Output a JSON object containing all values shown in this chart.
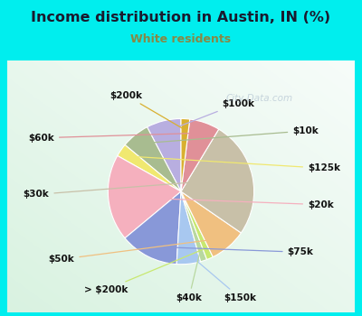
{
  "title": "Income distribution in Austin, IN (%)",
  "subtitle": "White residents",
  "title_color": "#1a1a2e",
  "subtitle_color": "#888844",
  "background_outer": "#00eeee",
  "labels": [
    "$100k",
    "$10k",
    "$125k",
    "$20k",
    "$75k",
    "$150k",
    "$40k",
    "> $200k",
    "$50k",
    "$30k",
    "$60k",
    "$200k"
  ],
  "values": [
    8.0,
    6.5,
    3.0,
    20.0,
    13.5,
    5.5,
    1.5,
    1.5,
    8.5,
    27.0,
    7.0,
    2.0
  ],
  "colors": [
    "#b8aee0",
    "#a8bc90",
    "#f0e870",
    "#f5b0be",
    "#8898d8",
    "#a8c8f0",
    "#b8d8a0",
    "#c8e870",
    "#f0c080",
    "#c8c0a8",
    "#e09098",
    "#d8b030"
  ],
  "watermark": "City-Data.com",
  "start_angle": 90
}
